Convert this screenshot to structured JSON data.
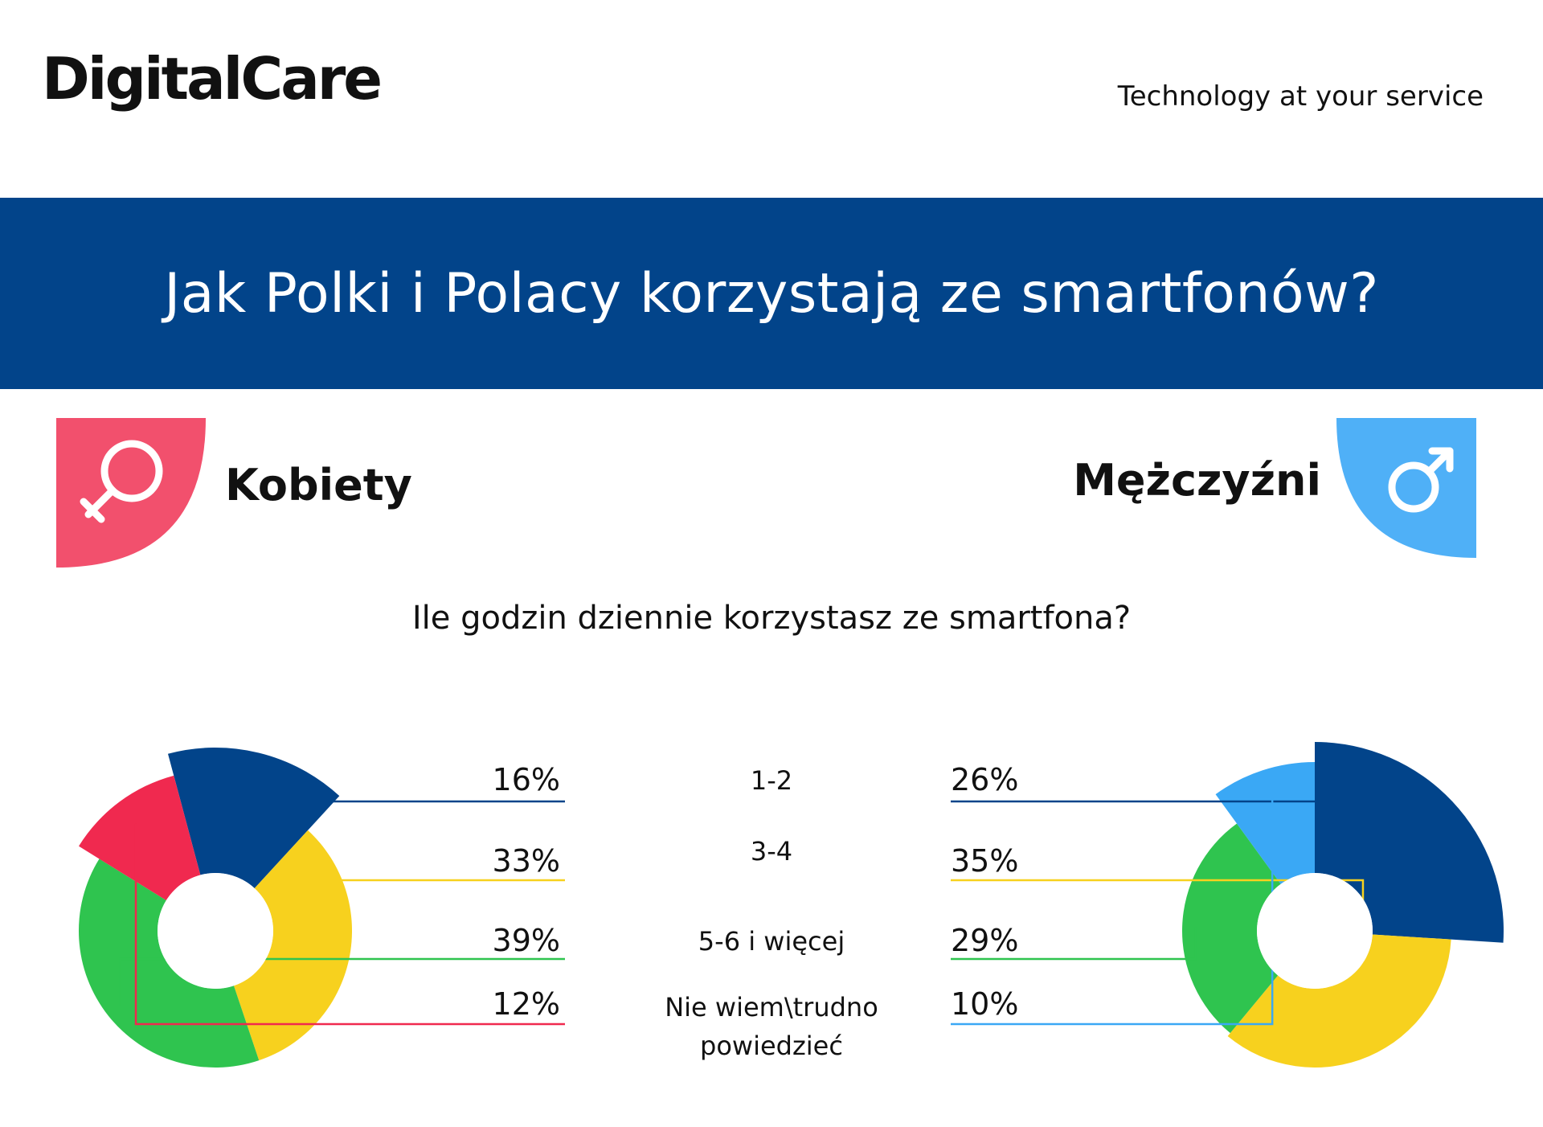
{
  "header": {
    "logo": "DigitalCare",
    "tagline": "Technology at your service"
  },
  "banner": {
    "title": "Jak Polki i Polacy korzystają ze smartfonów?"
  },
  "genders": {
    "female_label": "Kobiety",
    "male_label": "Mężczyźni",
    "female_icon": "female-symbol-icon",
    "male_icon": "male-symbol-icon",
    "female_color": "#f2506d",
    "male_color": "#4fb0f7"
  },
  "question": "Ile godzin dziennie korzystasz ze smartfona?",
  "chart_data": [
    {
      "type": "pie",
      "title": "Kobiety",
      "categories": [
        "1-2",
        "3-4",
        "5-6 i więcej",
        "Nie wiem\\trudno powiedzieć"
      ],
      "values": [
        16,
        33,
        39,
        12
      ],
      "labels": [
        "16%",
        "33%",
        "39%",
        "12%"
      ],
      "colors": [
        "#02448a",
        "#f7d11e",
        "#2fc44f",
        "#f0294f"
      ]
    },
    {
      "type": "pie",
      "title": "Mężczyźni",
      "categories": [
        "1-2",
        "3-4",
        "5-6 i więcej",
        "Nie wiem\\trudno powiedzieć"
      ],
      "values": [
        26,
        35,
        29,
        10
      ],
      "labels": [
        "26%",
        "35%",
        "29%",
        "10%"
      ],
      "colors": [
        "#02448a",
        "#f7d11e",
        "#2fc44f",
        "#3aa8f5"
      ]
    }
  ],
  "legend": {
    "categories": [
      "1-2",
      "3-4",
      "5-6 i więcej",
      "Nie wiem\\trudno",
      "powiedzieć"
    ]
  }
}
